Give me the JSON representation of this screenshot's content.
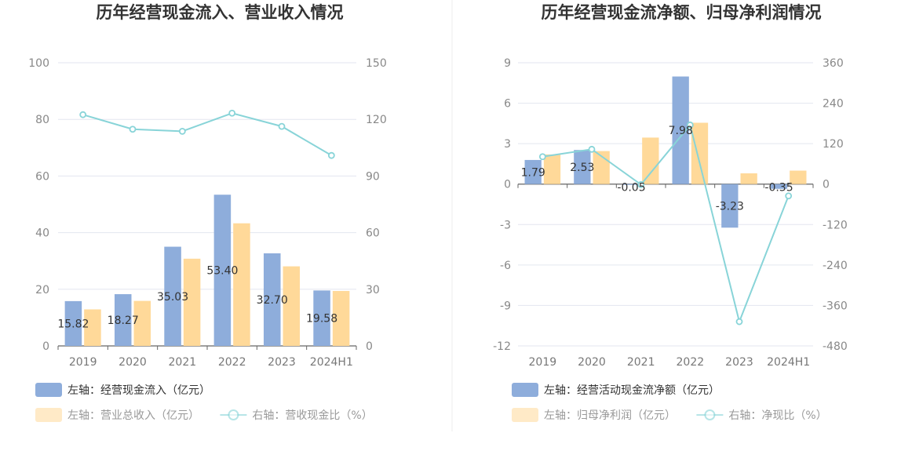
{
  "chart_data": [
    {
      "type": "bar",
      "title": "历年经营现金流入、营业收入情况",
      "categories": [
        "2019",
        "2020",
        "2021",
        "2022",
        "2023",
        "2024H1"
      ],
      "y_left": {
        "ticks": [
          "0",
          "20",
          "40",
          "60",
          "80",
          "100"
        ],
        "ylim": [
          0,
          100
        ]
      },
      "y_right": {
        "ticks": [
          "0",
          "30",
          "60",
          "90",
          "120",
          "150"
        ],
        "ylim": [
          0,
          150
        ]
      },
      "series": [
        {
          "name": "左轴：经营现金流入（亿元）",
          "type": "bar",
          "axis": "left",
          "color": "#8EADDB",
          "values": [
            15.82,
            18.27,
            35.03,
            53.4,
            32.7,
            19.58
          ],
          "labels": [
            "15.82",
            "18.27",
            "35.03",
            "53.40",
            "32.70",
            "19.58"
          ]
        },
        {
          "name": "左轴：营业总收入（亿元）",
          "type": "bar",
          "axis": "left",
          "color": "#FFD999",
          "values": [
            12.9,
            15.9,
            30.8,
            43.3,
            28.1,
            19.4
          ]
        },
        {
          "name": "右轴：营收现金比（%）",
          "type": "line",
          "axis": "right",
          "color": "#88D4D8",
          "values": [
            122.5,
            114.8,
            113.7,
            123.3,
            116.3,
            100.9
          ]
        }
      ],
      "grid": true,
      "legend": "bottom"
    },
    {
      "type": "bar",
      "title": "历年经营现金流净额、归母净利润情况",
      "categories": [
        "2019",
        "2020",
        "2021",
        "2022",
        "2023",
        "2024H1"
      ],
      "y_left": {
        "ticks": [
          "-12",
          "-9",
          "-6",
          "-3",
          "0",
          "3",
          "6",
          "9"
        ],
        "ylim": [
          -12,
          9
        ]
      },
      "y_right": {
        "ticks": [
          "-480",
          "-360",
          "-240",
          "-120",
          "0",
          "120",
          "240",
          "360"
        ],
        "ylim": [
          -480,
          360
        ]
      },
      "series": [
        {
          "name": "左轴：经营活动现金流净额（亿元）",
          "type": "bar",
          "axis": "left",
          "color": "#8EADDB",
          "values": [
            1.79,
            2.53,
            -0.05,
            7.98,
            -3.23,
            -0.35
          ],
          "labels": [
            "1.79",
            "2.53",
            "-0.05",
            "7.98",
            "-3.23",
            "-0.35"
          ]
        },
        {
          "name": "左轴：归母净利润（亿元）",
          "type": "bar",
          "axis": "left",
          "color": "#FFD999",
          "values": [
            2.2,
            2.45,
            3.45,
            4.55,
            0.8,
            1.0
          ]
        },
        {
          "name": "右轴：净现比（%）",
          "type": "line",
          "axis": "right",
          "color": "#88D4D8",
          "values": [
            81.4,
            103.3,
            -1.4,
            175.4,
            -408,
            -35
          ]
        }
      ],
      "grid": true,
      "legend": "bottom"
    }
  ]
}
